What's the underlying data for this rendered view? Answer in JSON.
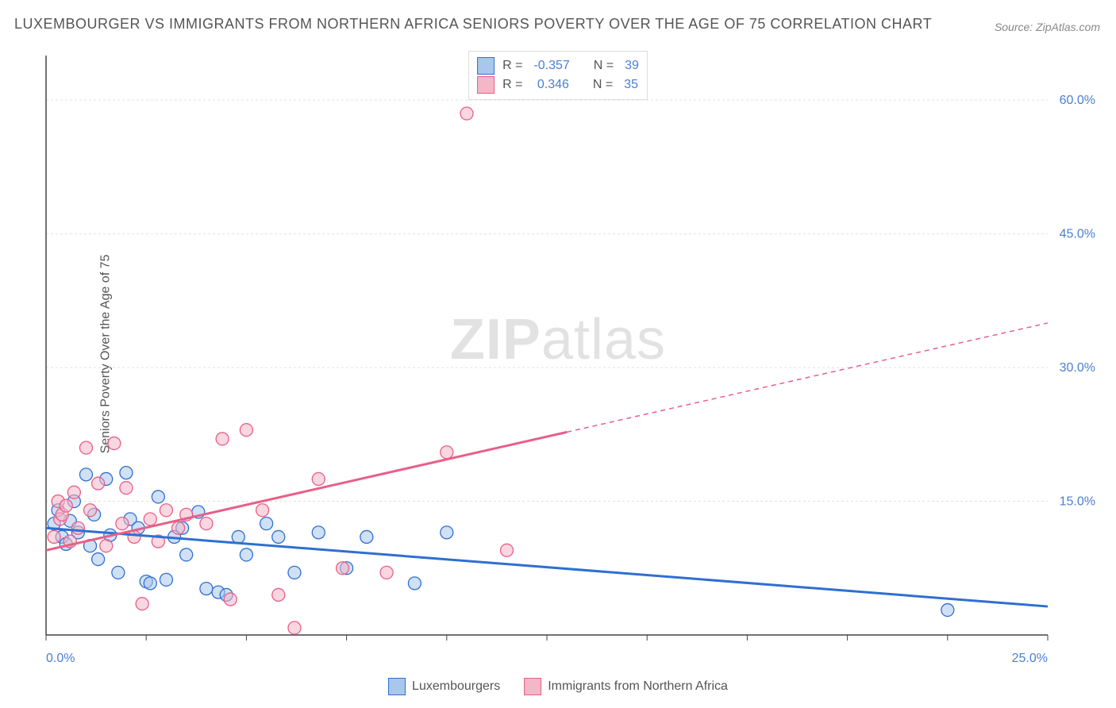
{
  "title": "LUXEMBOURGER VS IMMIGRANTS FROM NORTHERN AFRICA SENIORS POVERTY OVER THE AGE OF 75 CORRELATION CHART",
  "source": "Source: ZipAtlas.com",
  "ylabel": "Seniors Poverty Over the Age of 75",
  "watermark_a": "ZIP",
  "watermark_b": "atlas",
  "chart": {
    "type": "scatter",
    "background_color": "#ffffff",
    "grid_color": "#e0e0e0",
    "axis_color": "#444444",
    "xlim": [
      0,
      25
    ],
    "ylim": [
      0,
      65
    ],
    "x_ticks": [
      0,
      2.5,
      5,
      7.5,
      10,
      12.5,
      15,
      17.5,
      20,
      22.5,
      25
    ],
    "x_tick_labels_shown": {
      "0": "0.0%",
      "25": "25.0%"
    },
    "y_ticks": [
      15,
      30,
      45,
      60
    ],
    "y_tick_labels": [
      "15.0%",
      "30.0%",
      "45.0%",
      "60.0%"
    ],
    "marker_radius": 8,
    "marker_opacity": 0.55,
    "marker_stroke_width": 1.3,
    "trend_line_width": 3,
    "dash_pattern": "6 5"
  },
  "series": [
    {
      "name": "Luxembourgers",
      "fill_color": "#a9c6ec",
      "stroke_color": "#2f6fd0",
      "line_color": "#2f6fd0",
      "R": "-0.357",
      "N": "39",
      "trend": {
        "x1": 0,
        "y1": 12.0,
        "x2": 25,
        "y2": 3.2,
        "solid_until_x": 25
      },
      "points": [
        [
          0.2,
          12.5
        ],
        [
          0.3,
          14.0
        ],
        [
          0.4,
          11.0
        ],
        [
          0.5,
          10.2
        ],
        [
          0.6,
          12.8
        ],
        [
          0.7,
          15.0
        ],
        [
          0.8,
          11.5
        ],
        [
          1.0,
          18.0
        ],
        [
          1.1,
          10.0
        ],
        [
          1.2,
          13.5
        ],
        [
          1.3,
          8.5
        ],
        [
          1.5,
          17.5
        ],
        [
          1.6,
          11.2
        ],
        [
          1.8,
          7.0
        ],
        [
          2.0,
          18.2
        ],
        [
          2.1,
          13.0
        ],
        [
          2.3,
          12.0
        ],
        [
          2.5,
          6.0
        ],
        [
          2.6,
          5.8
        ],
        [
          2.8,
          15.5
        ],
        [
          3.0,
          6.2
        ],
        [
          3.2,
          11.0
        ],
        [
          3.4,
          12.0
        ],
        [
          3.5,
          9.0
        ],
        [
          3.8,
          13.8
        ],
        [
          4.0,
          5.2
        ],
        [
          4.3,
          4.8
        ],
        [
          4.5,
          4.5
        ],
        [
          4.8,
          11.0
        ],
        [
          5.0,
          9.0
        ],
        [
          5.5,
          12.5
        ],
        [
          5.8,
          11.0
        ],
        [
          6.2,
          7.0
        ],
        [
          6.8,
          11.5
        ],
        [
          7.5,
          7.5
        ],
        [
          8.0,
          11.0
        ],
        [
          9.2,
          5.8
        ],
        [
          10.0,
          11.5
        ],
        [
          22.5,
          2.8
        ]
      ]
    },
    {
      "name": "Immigrants from Northern Africa",
      "fill_color": "#f3b7c7",
      "stroke_color": "#e85f89",
      "line_color": "#e85f89",
      "R": "0.346",
      "N": "35",
      "trend": {
        "x1": 0,
        "y1": 9.5,
        "x2": 25,
        "y2": 35.0,
        "solid_until_x": 13
      },
      "points": [
        [
          0.2,
          11.0
        ],
        [
          0.3,
          15.0
        ],
        [
          0.35,
          13.0
        ],
        [
          0.4,
          13.5
        ],
        [
          0.5,
          14.5
        ],
        [
          0.6,
          10.5
        ],
        [
          0.7,
          16.0
        ],
        [
          0.8,
          12.0
        ],
        [
          1.0,
          21.0
        ],
        [
          1.1,
          14.0
        ],
        [
          1.3,
          17.0
        ],
        [
          1.5,
          10.0
        ],
        [
          1.7,
          21.5
        ],
        [
          1.9,
          12.5
        ],
        [
          2.0,
          16.5
        ],
        [
          2.2,
          11.0
        ],
        [
          2.4,
          3.5
        ],
        [
          2.6,
          13.0
        ],
        [
          2.8,
          10.5
        ],
        [
          3.0,
          14.0
        ],
        [
          3.3,
          12.0
        ],
        [
          3.5,
          13.5
        ],
        [
          4.0,
          12.5
        ],
        [
          4.4,
          22.0
        ],
        [
          4.6,
          4.0
        ],
        [
          5.0,
          23.0
        ],
        [
          5.4,
          14.0
        ],
        [
          5.8,
          4.5
        ],
        [
          6.2,
          0.8
        ],
        [
          6.8,
          17.5
        ],
        [
          7.4,
          7.5
        ],
        [
          8.5,
          7.0
        ],
        [
          10.0,
          20.5
        ],
        [
          10.5,
          58.5
        ],
        [
          11.5,
          9.5
        ]
      ]
    }
  ],
  "legend_labels": {
    "series1": "Luxembourgers",
    "series2": "Immigrants from Northern Africa"
  },
  "stat_legend": {
    "r_label": "R =",
    "n_label": "N ="
  }
}
